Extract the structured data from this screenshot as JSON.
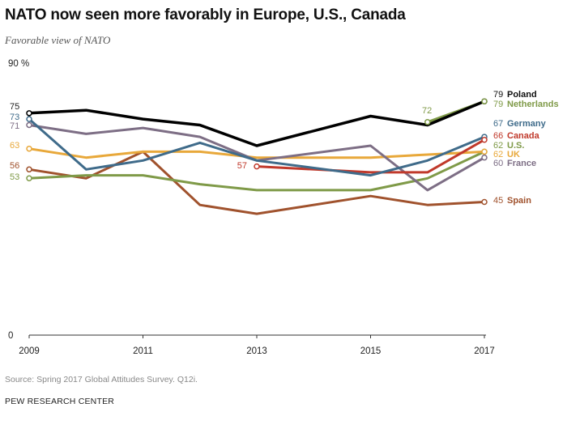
{
  "title": "NATO now seen more favorably in Europe, U.S., Canada",
  "subtitle": "Favorable view of NATO",
  "source": "Source: Spring 2017 Global Attitudes Survey. Q12i.",
  "brand": "PEW RESEARCH CENTER",
  "chart_data": {
    "type": "line",
    "ylim": [
      0,
      90
    ],
    "y_ticks": [
      {
        "value": 90,
        "label": "90 %"
      },
      {
        "value": 0,
        "label": "0"
      }
    ],
    "x_ticks": [
      2009,
      2011,
      2013,
      2015,
      2017
    ],
    "xlim": [
      2009,
      2017
    ],
    "grid": false,
    "series": [
      {
        "name": "Poland",
        "color": "#000000",
        "width": 3.5,
        "x": [
          2009,
          2010,
          2011,
          2012,
          2013,
          2014,
          2015,
          2016,
          2017
        ],
        "values": [
          75,
          76,
          73,
          71,
          64,
          null,
          74,
          71,
          79
        ],
        "end_label": "79",
        "start_label": "75"
      },
      {
        "name": "Netherlands",
        "color": "#7f9a48",
        "width": 3,
        "x": [
          2016,
          2017
        ],
        "values": [
          72,
          79
        ],
        "end_label": "79",
        "start_label": "72"
      },
      {
        "name": "Germany",
        "color": "#3f6b8a",
        "width": 3,
        "x": [
          2009,
          2010,
          2011,
          2012,
          2013,
          2015,
          2016,
          2017
        ],
        "values": [
          73,
          56,
          59,
          65,
          59,
          54,
          59,
          67
        ],
        "end_label": "67",
        "start_label": "73"
      },
      {
        "name": "Canada",
        "color": "#c0392b",
        "width": 3,
        "x": [
          2013,
          2015,
          2016,
          2017
        ],
        "values": [
          57,
          55,
          55,
          66
        ],
        "end_label": "66",
        "start_label": "57"
      },
      {
        "name": "U.S.",
        "color": "#7f9a48",
        "width": 3,
        "x": [
          2009,
          2010,
          2011,
          2012,
          2013,
          2014,
          2015,
          2016,
          2017
        ],
        "values": [
          53,
          54,
          54,
          51,
          49,
          null,
          49,
          53,
          62
        ],
        "end_label": "62",
        "start_label": "53"
      },
      {
        "name": "UK",
        "color": "#e8a83a",
        "width": 3,
        "x": [
          2009,
          2010,
          2011,
          2012,
          2013,
          2015,
          2016,
          2017
        ],
        "values": [
          63,
          60,
          62,
          62,
          60,
          60,
          61,
          62
        ],
        "end_label": "62",
        "start_label": "63"
      },
      {
        "name": "France",
        "color": "#7d6e85",
        "width": 3,
        "x": [
          2009,
          2010,
          2011,
          2012,
          2013,
          2014,
          2015,
          2016,
          2017
        ],
        "values": [
          71,
          68,
          70,
          67,
          59,
          null,
          64,
          49,
          60
        ],
        "end_label": "60",
        "start_label": "71"
      },
      {
        "name": "Spain",
        "color": "#a0522d",
        "width": 3,
        "x": [
          2009,
          2010,
          2011,
          2012,
          2013,
          2014,
          2015,
          2016,
          2017
        ],
        "values": [
          56,
          53,
          62,
          44,
          41,
          null,
          47,
          44,
          45
        ],
        "end_label": "45",
        "start_label": "56"
      }
    ]
  }
}
